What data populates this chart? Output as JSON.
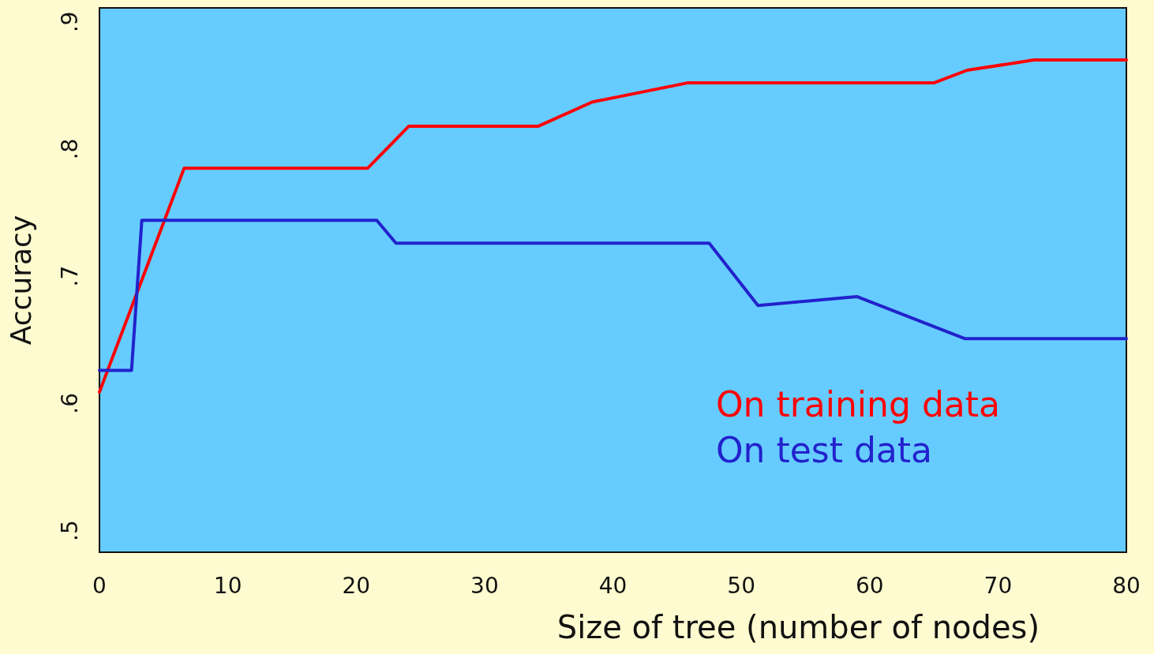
{
  "chart_data": {
    "type": "line",
    "xlabel": "Size of tree (number of nodes)",
    "ylabel": "Accuracy",
    "xlim": [
      0,
      80
    ],
    "xticks": [
      0,
      10,
      20,
      30,
      40,
      50,
      60,
      70,
      80
    ],
    "ylim": [
      0.483,
      0.911
    ],
    "yticks": [
      {
        "value": 0.5,
        "label": ".5"
      },
      {
        "value": 0.6,
        "label": ".6"
      },
      {
        "value": 0.7,
        "label": ".7"
      },
      {
        "value": 0.8,
        "label": ".8"
      },
      {
        "value": 0.9,
        "label": ".9"
      }
    ],
    "grid": false,
    "legend": "bottom right",
    "marker": "none",
    "line_style": "solid",
    "series": [
      {
        "name": "On training data",
        "color": "#ff0000",
        "x": [
          0,
          6.6,
          20.9,
          24.1,
          34.2,
          38.4,
          45.8,
          65,
          67.6,
          72.8,
          80
        ],
        "values": [
          0.609,
          0.785,
          0.785,
          0.818,
          0.818,
          0.837,
          0.852,
          0.852,
          0.862,
          0.87,
          0.87
        ]
      },
      {
        "name": "On test data",
        "color": "#2222cc",
        "x": [
          0,
          2.5,
          3.3,
          21.6,
          23.1,
          47.5,
          51.3,
          59.0,
          67.4,
          80
        ],
        "values": [
          0.626,
          0.626,
          0.744,
          0.744,
          0.726,
          0.726,
          0.677,
          0.684,
          0.651,
          0.651
        ]
      }
    ]
  }
}
